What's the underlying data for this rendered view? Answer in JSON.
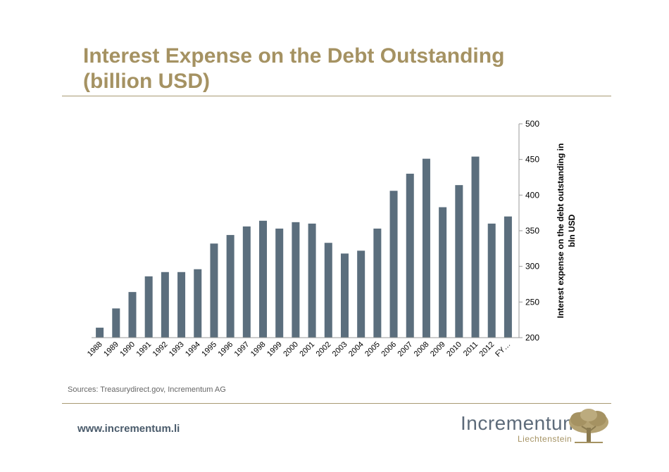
{
  "slide": {
    "title_line1": "Interest Expense on the Debt Outstanding",
    "title_line2": "(billion USD)",
    "sources": "Sources: Treasurydirect.gov, Incrementum AG",
    "website": "www.incrementum.li",
    "logo_name": "Incrementum",
    "logo_subtitle": "Liechtenstein",
    "logo_icon": "tree-icon",
    "accent_color": "#a59262",
    "bar_color": "#5b6e7d"
  },
  "chart_data": {
    "type": "bar",
    "title": "",
    "xlabel": "",
    "ylabel": "Interest expense on the debt outstanding in bln USD",
    "ylabel_lines": [
      "Interest expense on the debt outstanding in",
      "bln USD"
    ],
    "y_axis_side": "right",
    "ylim": [
      200,
      500
    ],
    "yticks": [
      200,
      250,
      300,
      350,
      400,
      450,
      500
    ],
    "grid": false,
    "legend": "none",
    "categories": [
      "1988",
      "1989",
      "1990",
      "1991",
      "1992",
      "1993",
      "1994",
      "1995",
      "1996",
      "1997",
      "1998",
      "1999",
      "2000",
      "2001",
      "2002",
      "2003",
      "2004",
      "2005",
      "2006",
      "2007",
      "2008",
      "2009",
      "2010",
      "2011",
      "2012",
      "FY…"
    ],
    "values": [
      214,
      241,
      264,
      286,
      292,
      292,
      296,
      332,
      344,
      356,
      364,
      353,
      362,
      360,
      333,
      318,
      322,
      353,
      406,
      430,
      451,
      383,
      414,
      454,
      360,
      370
    ]
  }
}
